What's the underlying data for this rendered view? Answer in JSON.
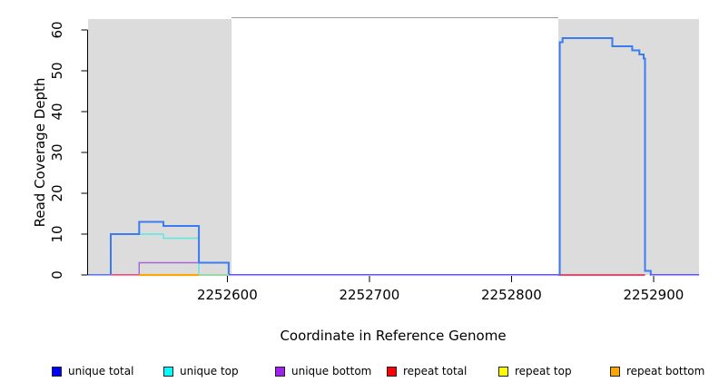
{
  "chart_data": {
    "type": "line",
    "title": "",
    "xlabel": "Coordinate in Reference Genome",
    "ylabel": "Read Coverage Depth",
    "xlim": [
      2252502,
      2252932
    ],
    "ylim": [
      0,
      60
    ],
    "xticks": [
      2252600,
      2252700,
      2252800,
      2252900
    ],
    "xtick_labels": [
      "2252600",
      "2252700",
      "2252800",
      "2252900"
    ],
    "yticks": [
      0,
      10,
      20,
      30,
      40,
      50,
      60
    ],
    "ytick_labels": [
      "0",
      "10",
      "20",
      "30",
      "40",
      "50",
      "60"
    ],
    "grid": false,
    "shaded_regions": [
      {
        "x1": 2252502,
        "x2": 2252603,
        "color": "#dcdcdc"
      },
      {
        "x1": 2252833,
        "x2": 2252932,
        "color": "#dcdcdc"
      }
    ],
    "box_top_segment": {
      "x1": 2252603,
      "x2": 2252833,
      "color": "#9c9c9c"
    },
    "series": [
      {
        "name": "unique top",
        "color": "#5ee7e0",
        "width": 1.4,
        "steps": [
          [
            2252518,
            0
          ],
          [
            2252518,
            10
          ],
          [
            2252555,
            9
          ],
          [
            2252580,
            0
          ]
        ],
        "end": 2252580
      },
      {
        "name": "unique bottom",
        "color": "#a765db",
        "width": 1.4,
        "steps": [
          [
            2252538,
            0
          ],
          [
            2252538,
            3
          ],
          [
            2252601,
            0
          ]
        ],
        "end": 2252601
      },
      {
        "name": "unique total",
        "color": "#3b7bf2",
        "width": 2,
        "steps": [
          [
            2252502,
            0
          ],
          [
            2252518,
            10
          ],
          [
            2252538,
            13
          ],
          [
            2252555,
            12
          ],
          [
            2252580,
            3
          ],
          [
            2252601,
            0
          ],
          [
            2252834,
            57
          ],
          [
            2252836,
            58
          ],
          [
            2252871,
            56
          ],
          [
            2252885,
            55
          ],
          [
            2252890,
            54
          ],
          [
            2252893,
            53
          ],
          [
            2252894,
            1
          ],
          [
            2252898,
            0
          ]
        ],
        "end": 2252932
      }
    ],
    "baseline_segments": [
      {
        "x1": 2252502,
        "x2": 2252518,
        "top": "#4a7df0",
        "bottom": "#b9a6f0"
      },
      {
        "x1": 2252518,
        "x2": 2252538,
        "top": "#dd5580",
        "bottom": "#e58fae"
      },
      {
        "x1": 2252538,
        "x2": 2252580,
        "top": "#ffa500",
        "bottom": "#ffa500"
      },
      {
        "x1": 2252580,
        "x2": 2252601,
        "top": "#9ed6a6",
        "bottom": "#9ed6a6"
      },
      {
        "x1": 2252601,
        "x2": 2252833,
        "top": "#5f55e6",
        "bottom": "#b4a4f4"
      },
      {
        "x1": 2252834,
        "x2": 2252894,
        "top": "#d94f72",
        "bottom": "#d94f72"
      },
      {
        "x1": 2252898,
        "x2": 2252932,
        "top": "#5f55e6",
        "bottom": "#b4a4f4"
      }
    ],
    "axis_color": "#000000"
  },
  "legend": {
    "swatch_border": "#222222",
    "items": [
      {
        "label": "unique total",
        "color": "#0000ff"
      },
      {
        "label": "unique top",
        "color": "#00ffff"
      },
      {
        "label": "unique bottom",
        "color": "#a020f0"
      },
      {
        "label": "repeat total",
        "color": "#ff0000"
      },
      {
        "label": "repeat top",
        "color": "#ffff00"
      },
      {
        "label": "repeat bottom",
        "color": "#ffa500"
      }
    ]
  }
}
